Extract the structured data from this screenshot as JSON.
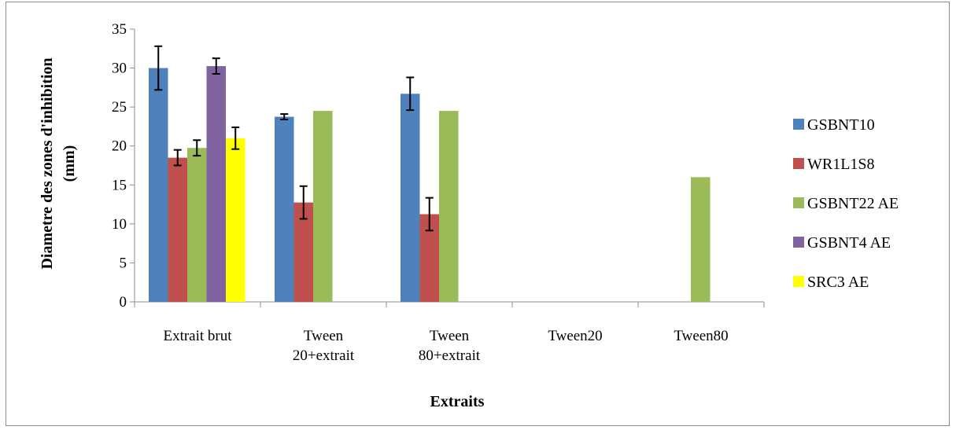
{
  "chart_data": {
    "type": "bar",
    "categories": [
      [
        "Extrait brut"
      ],
      [
        "Tween",
        "20+extrait"
      ],
      [
        "Tween",
        "80+extrait"
      ],
      [
        "Tween20"
      ],
      [
        "Tween80"
      ]
    ],
    "series": [
      {
        "name": "GSBNT10",
        "color": "#4f81bd",
        "values": [
          30,
          23.75,
          26.7,
          0,
          0
        ],
        "errors": [
          2.8,
          0.35,
          2.1,
          null,
          null
        ]
      },
      {
        "name": "WR1L1S8",
        "color": "#c0504d",
        "values": [
          18.5,
          12.75,
          11.25,
          0,
          0
        ],
        "errors": [
          1.0,
          2.1,
          2.1,
          null,
          null
        ]
      },
      {
        "name": "GSBNT22 AE",
        "color": "#9bbb59",
        "values": [
          19.75,
          24.5,
          24.5,
          0,
          16
        ],
        "errors": [
          1.0,
          null,
          null,
          null,
          null
        ]
      },
      {
        "name": "GSBNT4 AE",
        "color": "#8064a2",
        "values": [
          30.25,
          0,
          0,
          0,
          0
        ],
        "errors": [
          1.0,
          null,
          null,
          null,
          null
        ]
      },
      {
        "name": "SRC3 AE",
        "color": "#ffff00",
        "values": [
          21,
          0,
          0,
          0,
          0
        ],
        "errors": [
          1.4,
          null,
          null,
          null,
          null
        ]
      }
    ],
    "y_ticks": [
      "0",
      "5",
      "10",
      "15",
      "20",
      "25",
      "30",
      "35"
    ],
    "ylim": [
      0,
      35
    ],
    "xlabel": "Extraits",
    "ylabel": [
      "Diametre des zones d'inhibition",
      "(mm)"
    ],
    "legend_position": "right",
    "grid": false
  }
}
